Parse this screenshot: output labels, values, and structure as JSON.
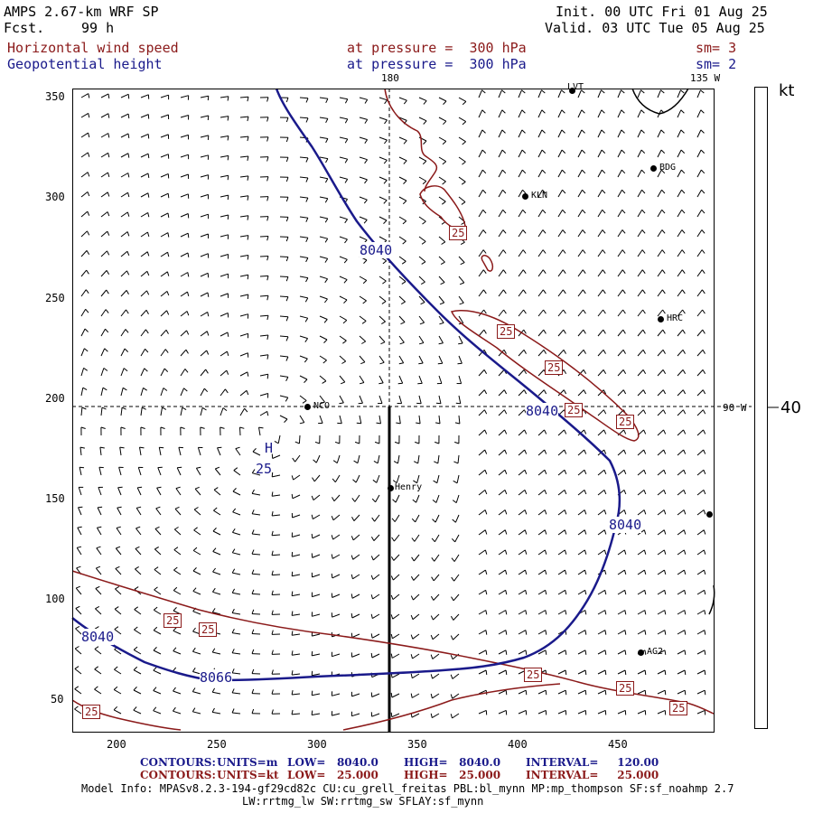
{
  "header": {
    "model": "AMPS 2.67-km WRF SP",
    "fcst_label": "Fcst.",
    "fcst_value": "99 h",
    "init": "Init. 00 UTC Fri 01 Aug 25",
    "valid": "Valid. 03 UTC Tue 05 Aug 25",
    "field1_name": "Horizontal wind speed",
    "field1_level": "at pressure =  300 hPa",
    "field1_sm": "sm= 3",
    "field2_name": "Geopotential height",
    "field2_level": "at pressure =  300 hPa",
    "field2_sm": "sm= 2"
  },
  "map": {
    "lon_top_180": "180",
    "lon_top_135w": "135 W",
    "lon_right_90w": "90 W",
    "x_ticks": [
      "200",
      "250",
      "300",
      "350",
      "400",
      "450"
    ],
    "y_ticks": [
      "350",
      "300",
      "250",
      "200",
      "150",
      "100",
      "50"
    ],
    "stations": [
      "LVT",
      "BDG",
      "KLN",
      "HRC",
      "NCO",
      "Henry",
      "AG2"
    ],
    "contour_labels": {
      "height": [
        "8040",
        "8040",
        "8040",
        "8040",
        "8066"
      ],
      "speed": [
        "25",
        "25",
        "25",
        "25",
        "25",
        "25",
        "25",
        "25",
        "25"
      ],
      "high_marker": "H"
    },
    "colors": {
      "wind_contour": "#8b1a1a",
      "height_contour": "#1a1a8b",
      "barbs": "#000000"
    }
  },
  "legend": {
    "unit": "kt",
    "value": "40"
  },
  "footer": {
    "line1_contours": "CONTOURS:",
    "line1_units": "UNITS=m",
    "line1_low": "LOW=   8040.0",
    "line1_high": "HIGH=   8040.0",
    "line1_interval": "INTERVAL=     120.00",
    "line2_contours": "CONTOURS:",
    "line2_units": "UNITS=kt",
    "line2_low": "LOW=   25.000",
    "line2_high": "HIGH=   25.000",
    "line2_interval": "INTERVAL=     25.000",
    "model_info": "Model Info: MPASv8.2.3-194-gf29cd82c CU:cu_grell_freitas PBL:bl_mynn MP:mp_thompson SF:sf_noahmp 2.7",
    "model_info2": "LW:rrtmg_lw SW:rrtmg_sw SFLAY:sf_mynn"
  }
}
